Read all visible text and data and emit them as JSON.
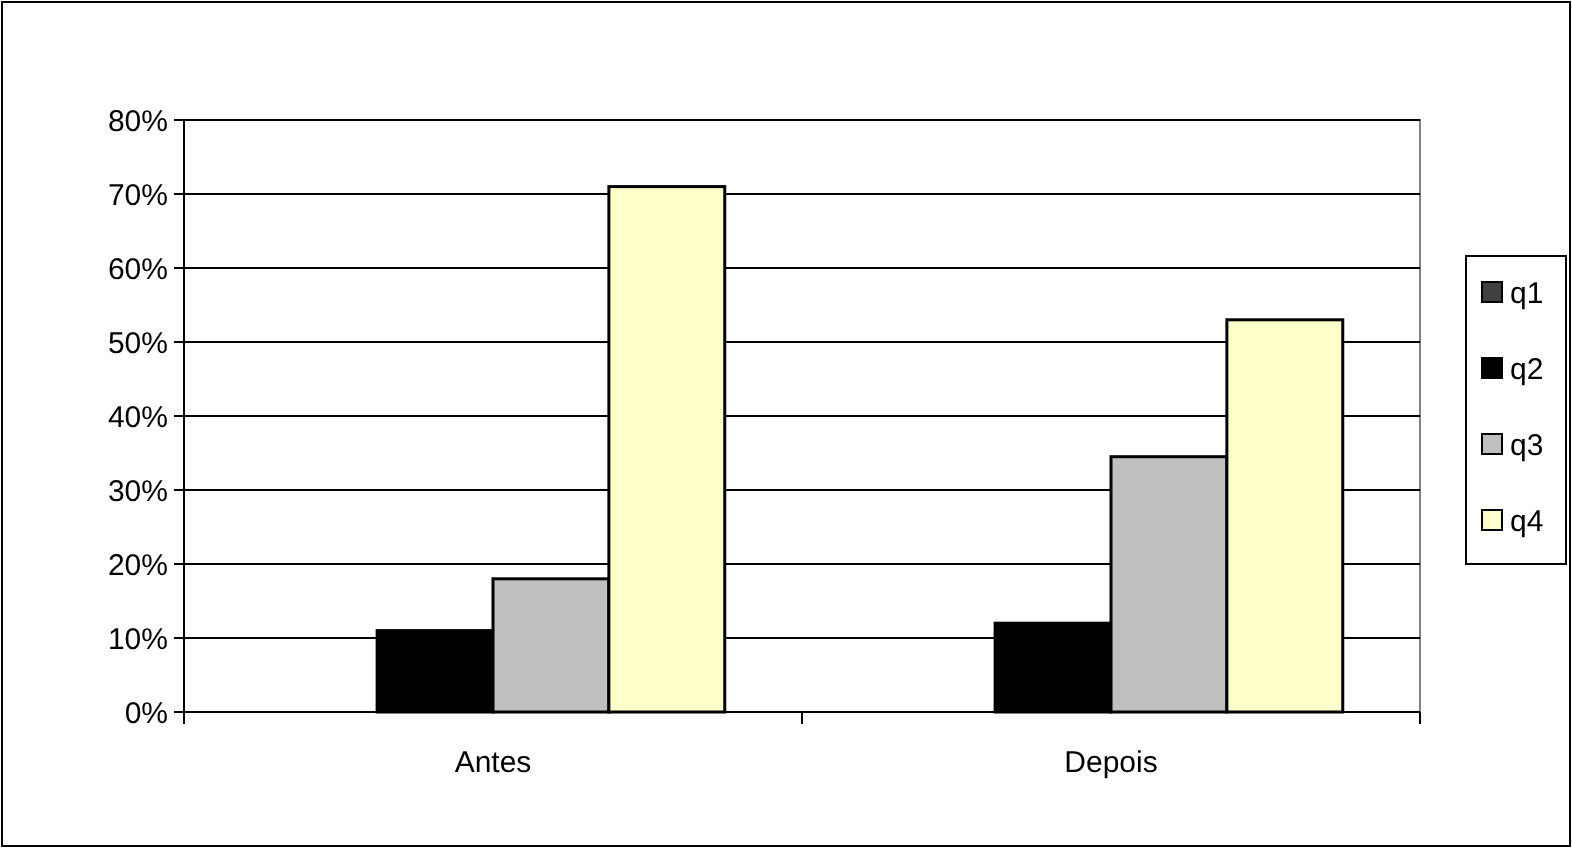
{
  "chart_data": {
    "type": "bar",
    "categories": [
      "Antes",
      "Depois"
    ],
    "series": [
      {
        "name": "q1",
        "color": "#404040",
        "values": [
          0,
          0
        ]
      },
      {
        "name": "q2",
        "color": "#000000",
        "values": [
          11,
          12
        ]
      },
      {
        "name": "q3",
        "color": "#c0c0c0",
        "values": [
          18,
          34.5
        ]
      },
      {
        "name": "q4",
        "color": "#ffffcc",
        "values": [
          71,
          53
        ]
      }
    ],
    "ylim": [
      0,
      80
    ],
    "yticks": [
      {
        "value": 0,
        "label": "0%"
      },
      {
        "value": 10,
        "label": "10%"
      },
      {
        "value": 20,
        "label": "20%"
      },
      {
        "value": 30,
        "label": "30%"
      },
      {
        "value": 40,
        "label": "40%"
      },
      {
        "value": 50,
        "label": "50%"
      },
      {
        "value": 60,
        "label": "60%"
      },
      {
        "value": 70,
        "label": "70%"
      },
      {
        "value": 80,
        "label": "80%"
      }
    ],
    "grid": "y",
    "legend": "right"
  }
}
